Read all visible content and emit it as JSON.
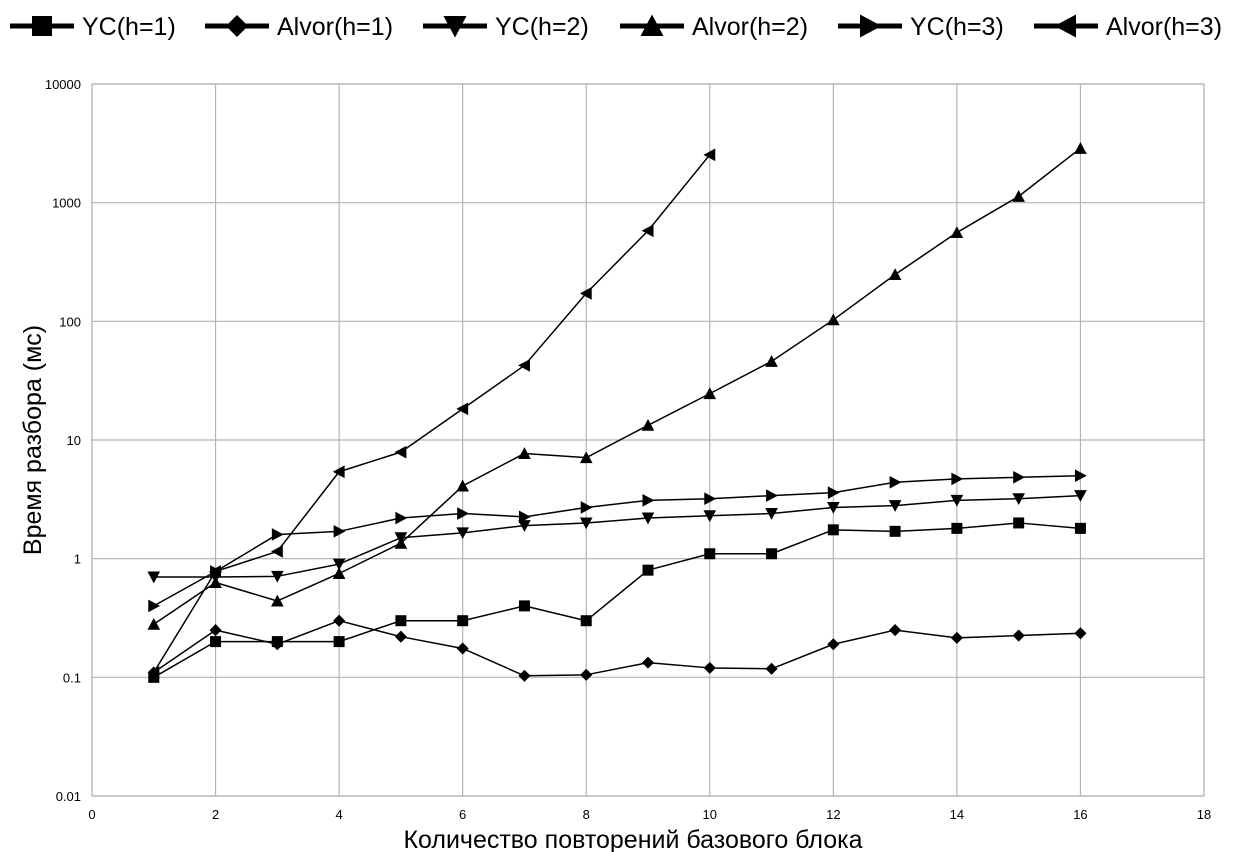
{
  "chart_data": {
    "type": "line",
    "title": "",
    "xlabel": "Количество повторений базового блока",
    "ylabel": "Время разбора (мс)",
    "xlim": [
      0,
      18
    ],
    "ylim": [
      0.01,
      10000
    ],
    "yscale": "log",
    "grid": true,
    "legend_position": "top",
    "x_ticks": [
      "0",
      "2",
      "4",
      "6",
      "8",
      "10",
      "12",
      "14",
      "16",
      "18"
    ],
    "y_ticks": [
      "0.01",
      "0.1",
      "1",
      "10",
      "100",
      "1000",
      "10000"
    ],
    "series": [
      {
        "name": "YC(h=1)",
        "marker": "square",
        "x": [
          1,
          2,
          3,
          4,
          5,
          6,
          7,
          8,
          9,
          10,
          11,
          12,
          13,
          14,
          15,
          16
        ],
        "y": [
          0.1,
          0.2,
          0.2,
          0.2,
          0.3,
          0.3,
          0.4,
          0.3,
          0.8,
          1.1,
          1.1,
          1.75,
          1.7,
          1.8,
          2.0,
          1.8
        ]
      },
      {
        "name": "Alvor(h=1)",
        "marker": "diamond",
        "x": [
          1,
          2,
          3,
          4,
          5,
          6,
          7,
          8,
          9,
          10,
          11,
          12,
          13,
          14,
          15,
          16
        ],
        "y": [
          0.11,
          0.25,
          0.19,
          0.3,
          0.22,
          0.175,
          0.103,
          0.105,
          0.133,
          0.12,
          0.118,
          0.19,
          0.25,
          0.215,
          0.225,
          0.235
        ]
      },
      {
        "name": "YC(h=2)",
        "marker": "triangle-down",
        "x": [
          1,
          2,
          3,
          4,
          5,
          6,
          7,
          8,
          9,
          10,
          11,
          12,
          13,
          14,
          15,
          16
        ],
        "y": [
          0.7,
          0.7,
          0.71,
          0.9,
          1.5,
          1.65,
          1.9,
          2.0,
          2.2,
          2.3,
          2.4,
          2.7,
          2.8,
          3.1,
          3.2,
          3.4
        ]
      },
      {
        "name": "Alvor(h=2)",
        "marker": "triangle-up",
        "x": [
          1,
          2,
          3,
          4,
          5,
          6,
          7,
          8,
          9,
          10,
          11,
          12,
          13,
          14,
          15,
          16
        ],
        "y": [
          0.28,
          0.63,
          0.44,
          0.75,
          1.35,
          4.1,
          7.7,
          7.1,
          13.3,
          24.6,
          46,
          103,
          248,
          560,
          1130,
          2870
        ]
      },
      {
        "name": "YC(h=3)",
        "marker": "triangle-right",
        "x": [
          1,
          2,
          3,
          4,
          5,
          6,
          7,
          8,
          9,
          10,
          11,
          12,
          13,
          14,
          15,
          16
        ],
        "y": [
          0.4,
          0.78,
          1.6,
          1.7,
          2.2,
          2.4,
          2.25,
          2.7,
          3.1,
          3.2,
          3.4,
          3.6,
          4.4,
          4.7,
          4.85,
          5.0
        ]
      },
      {
        "name": "Alvor(h=3)",
        "marker": "triangle-left",
        "x": [
          1,
          2,
          3,
          4,
          5,
          6,
          7,
          8,
          9,
          10
        ],
        "y": [
          0.11,
          0.78,
          1.15,
          5.4,
          7.9,
          18.3,
          42.5,
          172,
          580,
          2530
        ]
      }
    ]
  }
}
